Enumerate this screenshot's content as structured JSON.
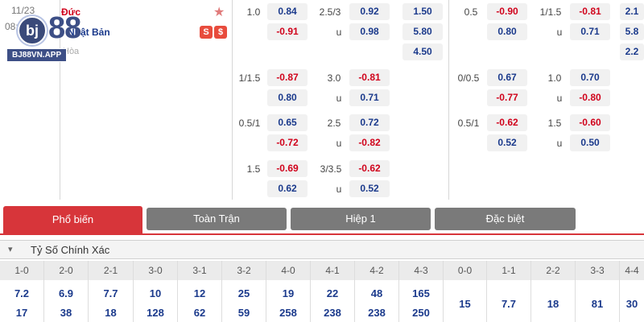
{
  "match": {
    "date": "11/23",
    "time": "08:00 PM",
    "home_team": "Đức",
    "away_team": "Nhật Bản",
    "draw_label": "Hòa",
    "badge_stats": "S",
    "badge_money": "$"
  },
  "logo": {
    "mark": "bj",
    "brand": "88",
    "url": "BJ88VN.APP"
  },
  "odds": {
    "rows": [
      {
        "hdp_line": "1.0",
        "hdp_home": "0.84",
        "hdp_away": "-0.91",
        "ou_line": "2.5/3",
        "ou_over": "0.92",
        "ou_under_label": "u",
        "ou_under": "0.98",
        "x12_home": "1.50",
        "x12_away": "5.80",
        "x12_draw": "4.50",
        "h1_line": "0.5",
        "h1_home": "-0.90",
        "h1_away": "0.80",
        "h1_ou_line": "1/1.5",
        "h1_over": "-0.81",
        "h1_under_label": "u",
        "h1_under": "0.71",
        "h1x_home": "2.1",
        "h1x_away": "5.8",
        "h1x_draw": "2.2"
      },
      {
        "hdp_line": "1/1.5",
        "hdp_home": "-0.87",
        "hdp_away": "0.80",
        "ou_line": "3.0",
        "ou_over": "-0.81",
        "ou_under_label": "u",
        "ou_under": "0.71",
        "h1_line": "0/0.5",
        "h1_home": "0.67",
        "h1_away": "-0.77",
        "h1_ou_line": "1.0",
        "h1_over": "0.70",
        "h1_under_label": "u",
        "h1_under": "-0.80"
      },
      {
        "hdp_line": "0.5/1",
        "hdp_home": "0.65",
        "hdp_away": "-0.72",
        "ou_line": "2.5",
        "ou_over": "0.72",
        "ou_under_label": "u",
        "ou_under": "-0.82",
        "h1_line": "0.5/1",
        "h1_home": "-0.62",
        "h1_away": "0.52",
        "h1_ou_line": "1.5",
        "h1_over": "-0.60",
        "h1_under_label": "u",
        "h1_under": "0.50"
      },
      {
        "hdp_line": "1.5",
        "hdp_home": "-0.69",
        "hdp_away": "0.62",
        "ou_line": "3/3.5",
        "ou_over": "-0.62",
        "ou_under_label": "u",
        "ou_under": "0.52"
      }
    ]
  },
  "tabs": [
    "Phổ biến",
    "Toàn Trận",
    "Hiệp 1",
    "Đặc biệt"
  ],
  "section": {
    "title": "Tỷ Số Chính Xác"
  },
  "scores": [
    {
      "label": "1-0",
      "v1": "7.2",
      "v2": "17"
    },
    {
      "label": "2-0",
      "v1": "6.9",
      "v2": "38"
    },
    {
      "label": "2-1",
      "v1": "7.7",
      "v2": "18"
    },
    {
      "label": "3-0",
      "v1": "10",
      "v2": "128"
    },
    {
      "label": "3-1",
      "v1": "12",
      "v2": "62"
    },
    {
      "label": "3-2",
      "v1": "25",
      "v2": "59"
    },
    {
      "label": "4-0",
      "v1": "19",
      "v2": "258"
    },
    {
      "label": "4-1",
      "v1": "22",
      "v2": "238"
    },
    {
      "label": "4-2",
      "v1": "48",
      "v2": "238"
    },
    {
      "label": "4-3",
      "v1": "165",
      "v2": "250"
    },
    {
      "label": "0-0",
      "v1": "15"
    },
    {
      "label": "1-1",
      "v1": "7.7"
    },
    {
      "label": "2-2",
      "v1": "18"
    },
    {
      "label": "3-3",
      "v1": "81"
    },
    {
      "label": "4-4",
      "v1": "30"
    }
  ],
  "colors": {
    "accent": "#d7353a",
    "positive": "#1b3a8c",
    "negative": "#d0021b",
    "tab_inactive": "#7a7a7a"
  }
}
